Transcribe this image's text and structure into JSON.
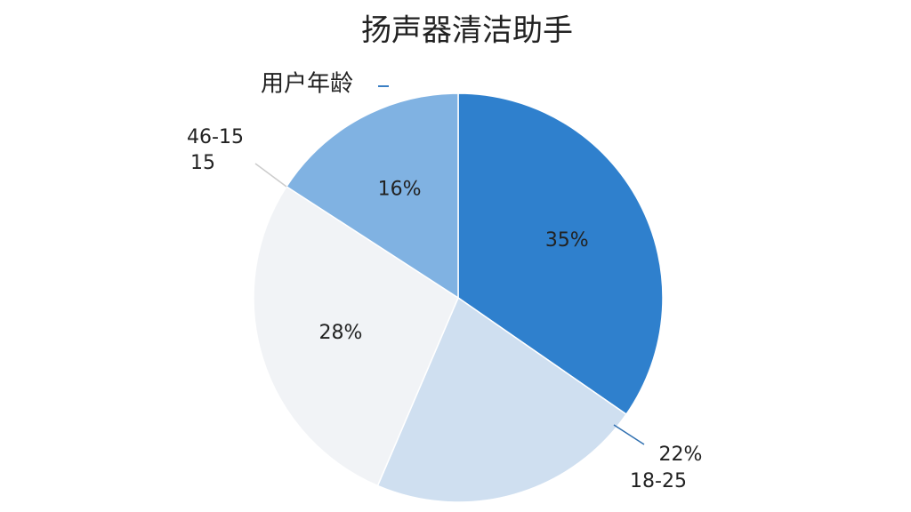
{
  "chart_data": {
    "type": "pie",
    "title": "扬声器清洁助手",
    "subtitle": "用户年龄",
    "categories": [
      null,
      "18-25",
      "46-15",
      null
    ],
    "values": [
      35,
      22,
      28,
      16
    ],
    "value_labels": [
      "35%",
      "22%",
      "28%",
      "16%"
    ],
    "colors": [
      "#2f80cd",
      "#cfdff0",
      "#f1f3f6",
      "#80b2e2"
    ],
    "annotations": [
      "15"
    ]
  }
}
